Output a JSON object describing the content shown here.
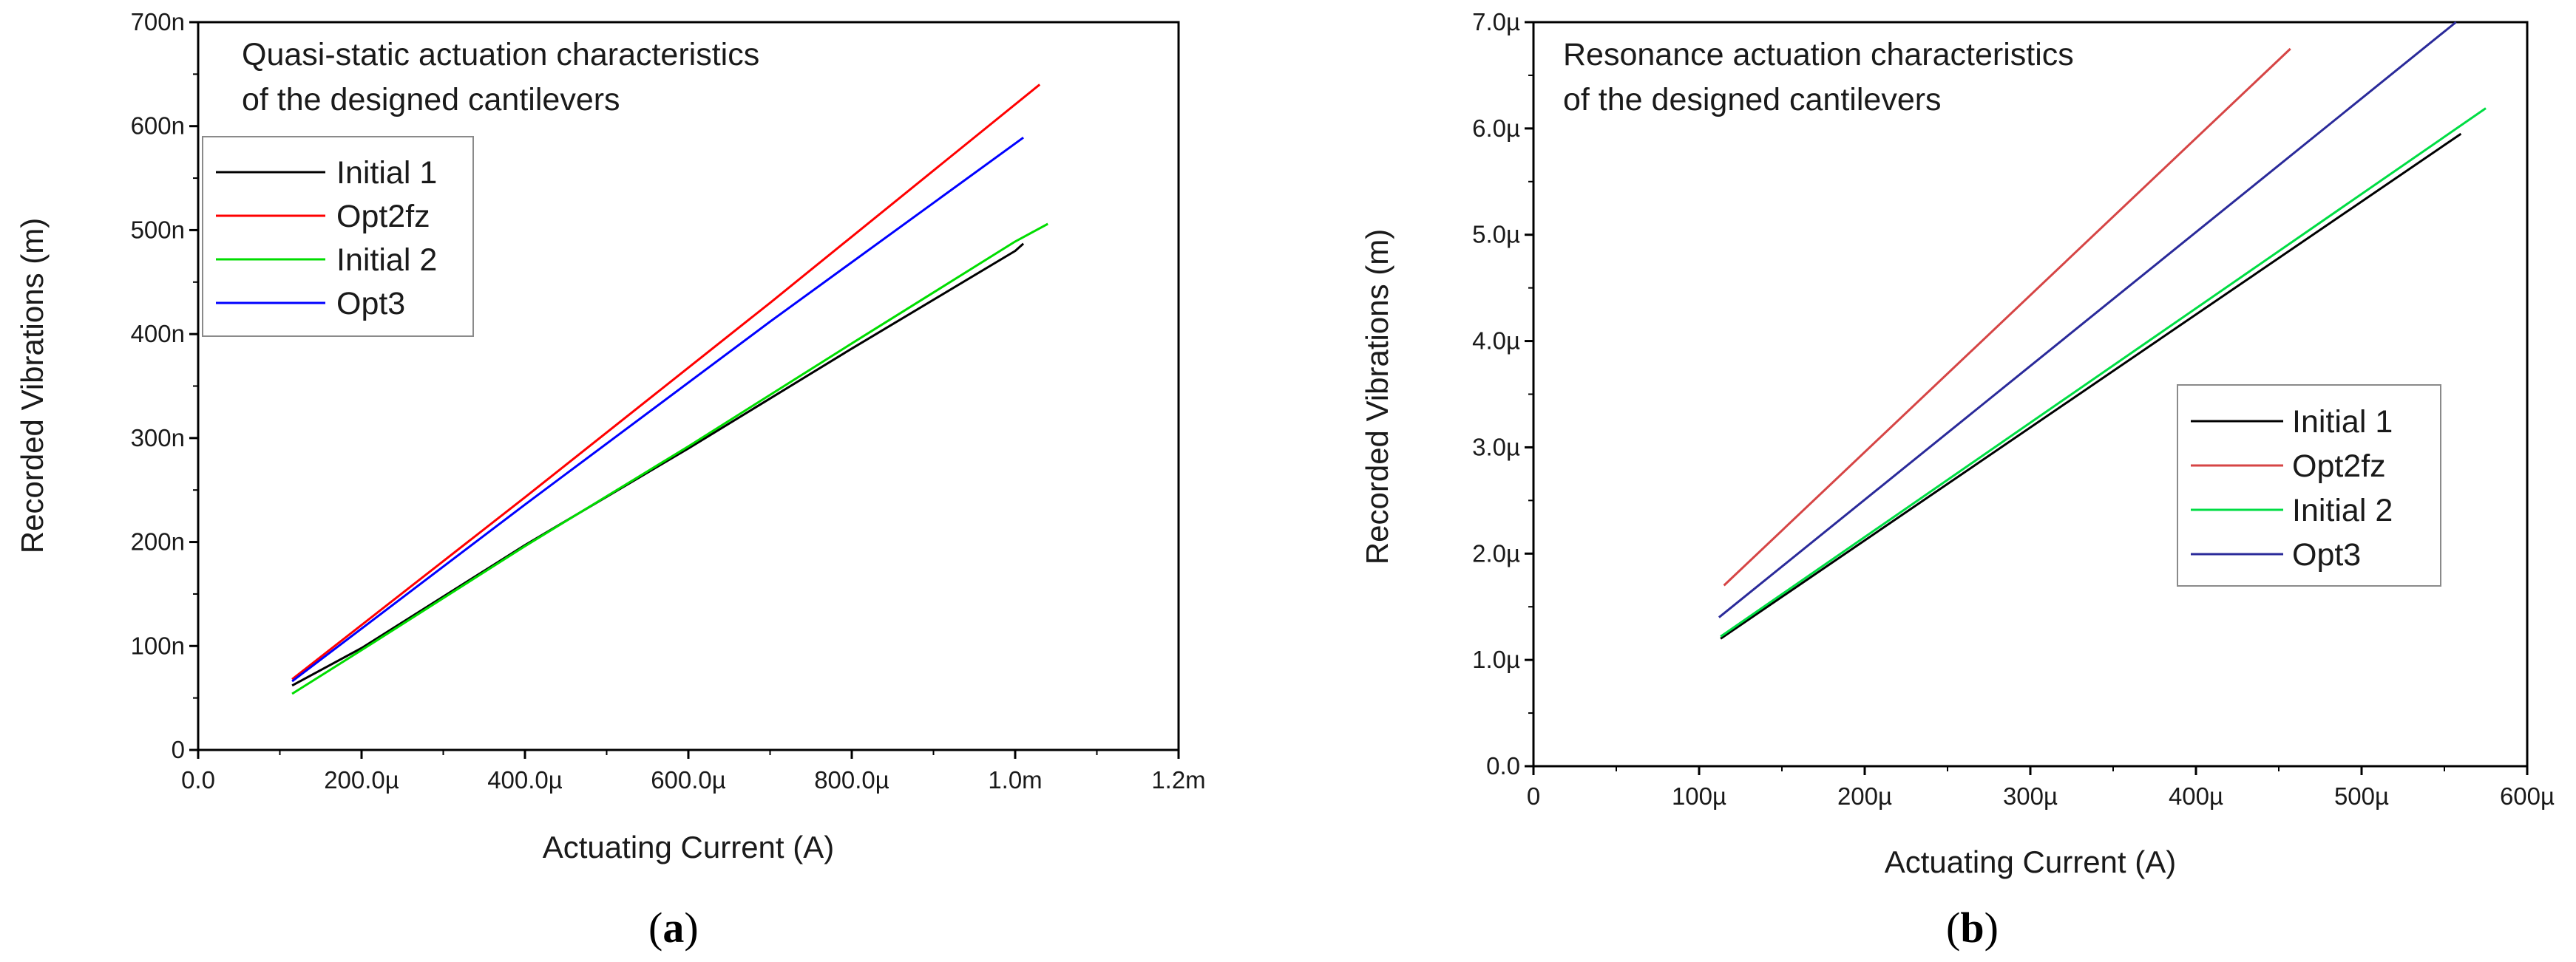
{
  "chart_data": [
    {
      "type": "line",
      "panel_label": "(a)",
      "panel_letter": "a",
      "title": [
        "Quasi-static actuation characteristics",
        "of the designed cantilevers"
      ],
      "xlabel": "Actuating Current (A)",
      "ylabel": "Recorded Vibrations (m)",
      "xlim": [
        0,
        0.0012
      ],
      "ylim": [
        0,
        7e-07
      ],
      "xticks": [
        {
          "value": 0,
          "label": "0.0"
        },
        {
          "value": 0.0002,
          "label": "200.0µ"
        },
        {
          "value": 0.0004,
          "label": "400.0µ"
        },
        {
          "value": 0.0006,
          "label": "600.0µ"
        },
        {
          "value": 0.0008,
          "label": "800.0µ"
        },
        {
          "value": 0.001,
          "label": "1.0m"
        },
        {
          "value": 0.0012,
          "label": "1.2m"
        }
      ],
      "yticks": [
        {
          "value": 0,
          "label": "0"
        },
        {
          "value": 1e-07,
          "label": "100n"
        },
        {
          "value": 2e-07,
          "label": "200n"
        },
        {
          "value": 3e-07,
          "label": "300n"
        },
        {
          "value": 4e-07,
          "label": "400n"
        },
        {
          "value": 5e-07,
          "label": "500n"
        },
        {
          "value": 6e-07,
          "label": "600n"
        },
        {
          "value": 7e-07,
          "label": "700n"
        }
      ],
      "legend_position": "upper-left",
      "series": [
        {
          "name": "Initial 1",
          "color": "#000000",
          "x": [
            0.000115,
            0.0002,
            0.0004,
            0.0006,
            0.0008,
            0.001,
            0.00101
          ],
          "y": [
            6.2e-08,
            9.8e-08,
            1.97e-07,
            2.9e-07,
            3.86e-07,
            4.8e-07,
            4.87e-07
          ]
        },
        {
          "name": "Opt2fz",
          "color": "#ff0000",
          "x": [
            0.000115,
            0.0004,
            0.0007,
            0.00103
          ],
          "y": [
            6.8e-08,
            2.43e-07,
            4.3e-07,
            6.4e-07
          ]
        },
        {
          "name": "Initial 2",
          "color": "#00dd00",
          "x": [
            0.000115,
            0.0002,
            0.0004,
            0.0006,
            0.0008,
            0.001,
            0.00104
          ],
          "y": [
            5.4e-08,
            9.6e-08,
            1.96e-07,
            2.92e-07,
            3.91e-07,
            4.89e-07,
            5.06e-07
          ]
        },
        {
          "name": "Opt3",
          "color": "#0000ff",
          "x": [
            0.000115,
            0.0004,
            0.0007,
            0.00101
          ],
          "y": [
            6.6e-08,
            2.36e-07,
            4.12e-07,
            5.89e-07
          ]
        }
      ]
    },
    {
      "type": "line",
      "panel_label": "(b)",
      "panel_letter": "b",
      "title": [
        "Resonance actuation characteristics",
        "of the designed cantilevers"
      ],
      "xlabel": "Actuating Current (A)",
      "ylabel": "Recorded Vibrations (m)",
      "xlim": [
        0,
        0.0006
      ],
      "ylim": [
        0,
        7e-06
      ],
      "xticks": [
        {
          "value": 0,
          "label": "0"
        },
        {
          "value": 0.0001,
          "label": "100µ"
        },
        {
          "value": 0.0002,
          "label": "200µ"
        },
        {
          "value": 0.0003,
          "label": "300µ"
        },
        {
          "value": 0.0004,
          "label": "400µ"
        },
        {
          "value": 0.0005,
          "label": "500µ"
        },
        {
          "value": 0.0006,
          "label": "600µ"
        }
      ],
      "yticks": [
        {
          "value": 0,
          "label": "0.0"
        },
        {
          "value": 1e-06,
          "label": "1.0µ"
        },
        {
          "value": 2e-06,
          "label": "2.0µ"
        },
        {
          "value": 3e-06,
          "label": "3.0µ"
        },
        {
          "value": 4e-06,
          "label": "4.0µ"
        },
        {
          "value": 5e-06,
          "label": "5.0µ"
        },
        {
          "value": 6e-06,
          "label": "6.0µ"
        },
        {
          "value": 7e-06,
          "label": "7.0µ"
        }
      ],
      "legend_position": "lower-right",
      "series": [
        {
          "name": "Initial 1",
          "color": "#000000",
          "x": [
            0.000113,
            0.00056
          ],
          "y": [
            1.2e-06,
            5.95e-06
          ]
        },
        {
          "name": "Opt2fz",
          "color": "#d64545",
          "x": [
            0.000115,
            0.000457
          ],
          "y": [
            1.7e-06,
            6.75e-06
          ]
        },
        {
          "name": "Initial 2",
          "color": "#00dd44",
          "x": [
            0.000113,
            0.000575
          ],
          "y": [
            1.22e-06,
            6.19e-06
          ]
        },
        {
          "name": "Opt3",
          "color": "#2a2a9a",
          "x": [
            0.000112,
            0.000557
          ],
          "y": [
            1.4e-06,
            7e-06
          ]
        }
      ]
    }
  ]
}
